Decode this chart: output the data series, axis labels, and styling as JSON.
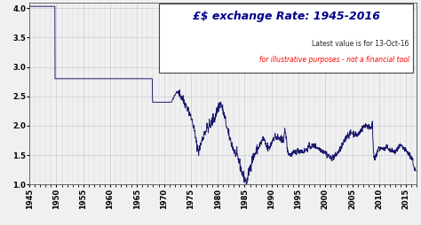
{
  "title_line1": "£$ exchange Rate: 1945-2016",
  "subtitle_line1": "Latest value is for 13-Oct-16",
  "subtitle_line2": "for illustrative purposes - not a financial tool",
  "line_color": "#1a1a6e",
  "background_color": "#f0f0f0",
  "grid_color": "#c0c0d0",
  "xlim": [
    1945,
    2017
  ],
  "ylim": [
    1.0,
    4.1
  ],
  "xticks": [
    1945,
    1950,
    1955,
    1960,
    1965,
    1970,
    1975,
    1980,
    1985,
    1990,
    1995,
    2000,
    2005,
    2010,
    2015
  ],
  "yticks": [
    1.0,
    1.5,
    2.0,
    2.5,
    3.0,
    3.5,
    4.0
  ]
}
